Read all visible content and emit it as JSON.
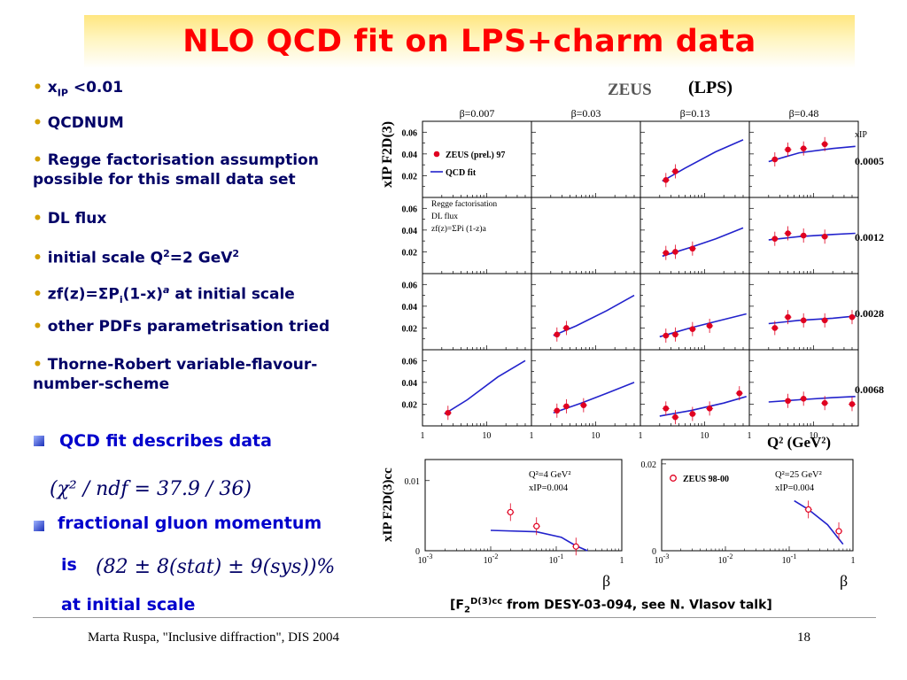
{
  "slide": {
    "title": "NLO QCD fit on LPS+charm data",
    "bullets": [
      {
        "text": "x",
        "sub": "IP",
        "tail": " <0.01"
      },
      {
        "text": "QCDNUM"
      },
      {
        "text": "Regge factorisation assumption",
        "line2": "possible for this small data set"
      },
      {
        "text": "DL flux"
      },
      {
        "text": "initial scale Q",
        "sup": "2",
        "tail": "=2 GeV",
        "sup2": "2"
      },
      {
        "text": "zf(z)=ΣP",
        "sub": "i",
        "tail": "(1-x)",
        "sup": "a",
        "tail2": " at initial scale"
      },
      {
        "text": "other PDFs parametrisation tried"
      },
      {
        "text": "Thorne-Robert variable-flavour-",
        "line2": "number-scheme"
      }
    ],
    "fit_describes": "QCD fit describes data",
    "chi2_formula": "(χ² / ndf = 37.9 / 36)",
    "gluon_label": "fractional gluon momentum",
    "is_label": "is",
    "gluon_formula": "(82 ± 8(stat) ± 9(sys))%",
    "at_initial": "at initial scale",
    "reference": "[F2D(3)cc from DESY-03-094, see N. Vlasov talk]",
    "ref_parts": {
      "pre": "[F",
      "sub": "2",
      "sup": "D(3)cc",
      "post": " from DESY-03-094, see N. Vlasov talk]"
    },
    "footer_left": "Marta Ruspa, \"Inclusive diffraction\", DIS 2004",
    "footer_right": "18"
  },
  "colors": {
    "title": "#ff0000",
    "bullet_text": "#000066",
    "blue_text": "#0000cc",
    "data_point": "#e00020",
    "fit_line": "#2222cc",
    "bullet_dot": "#d4a000"
  },
  "chart_data": [
    {
      "type": "scatter",
      "title": "ZEUS",
      "subtitle": "(LPS)",
      "ylabel": "xIP F2D(3)",
      "xlabel": "Q² (GeV²)",
      "x_scale": "log",
      "xlim": [
        1,
        50
      ],
      "ylim": [
        0,
        0.07
      ],
      "y_ticks": [
        "0.02",
        "0.04",
        "0.06"
      ],
      "x_ticks": [
        "1",
        "10"
      ],
      "columns": [
        "β=0.007",
        "β=0.03",
        "β=0.13",
        "β=0.48"
      ],
      "rows": [
        "0.0005",
        "0.0012",
        "0.0028",
        "0.0068"
      ],
      "row_axis_label": "xIP",
      "legend": [
        "ZEUS (prel.) 97",
        "QCD fit"
      ],
      "annotation": [
        "Regge factorisation",
        "DL flux",
        "zf(z)=ΣPi (1-z)a"
      ],
      "panels": [
        {
          "row": 0,
          "col": 0,
          "points": [],
          "fit": []
        },
        {
          "row": 0,
          "col": 1,
          "points": [],
          "fit": []
        },
        {
          "row": 0,
          "col": 2,
          "points": [
            [
              2.5,
              0.016
            ],
            [
              3.5,
              0.024
            ]
          ],
          "fit": [
            [
              2.2,
              0.015
            ],
            [
              5,
              0.027
            ],
            [
              15,
              0.042
            ],
            [
              40,
              0.053
            ]
          ]
        },
        {
          "row": 0,
          "col": 3,
          "points": [
            [
              2.5,
              0.035
            ],
            [
              4,
              0.044
            ],
            [
              7,
              0.045
            ],
            [
              15,
              0.049
            ]
          ],
          "fit": [
            [
              2,
              0.033
            ],
            [
              6,
              0.041
            ],
            [
              20,
              0.045
            ],
            [
              45,
              0.047
            ]
          ]
        },
        {
          "row": 1,
          "col": 0,
          "points": [],
          "fit": []
        },
        {
          "row": 1,
          "col": 1,
          "points": [],
          "fit": []
        },
        {
          "row": 1,
          "col": 2,
          "points": [
            [
              2.5,
              0.019
            ],
            [
              3.5,
              0.02
            ],
            [
              6.5,
              0.023
            ]
          ],
          "fit": [
            [
              2.2,
              0.016
            ],
            [
              6,
              0.024
            ],
            [
              15,
              0.032
            ],
            [
              40,
              0.042
            ]
          ]
        },
        {
          "row": 1,
          "col": 3,
          "points": [
            [
              2.5,
              0.032
            ],
            [
              4,
              0.037
            ],
            [
              7,
              0.035
            ],
            [
              15,
              0.034
            ]
          ],
          "fit": [
            [
              2,
              0.031
            ],
            [
              6,
              0.034
            ],
            [
              20,
              0.036
            ],
            [
              45,
              0.037
            ]
          ]
        },
        {
          "row": 2,
          "col": 0,
          "points": [],
          "fit": []
        },
        {
          "row": 2,
          "col": 1,
          "points": [
            [
              2.5,
              0.014
            ],
            [
              3.5,
              0.02
            ]
          ],
          "fit": [
            [
              2.2,
              0.013
            ],
            [
              5,
              0.022
            ],
            [
              15,
              0.036
            ],
            [
              40,
              0.05
            ]
          ]
        },
        {
          "row": 2,
          "col": 2,
          "points": [
            [
              2.5,
              0.013
            ],
            [
              3.5,
              0.014
            ],
            [
              6.5,
              0.019
            ],
            [
              12,
              0.022
            ]
          ],
          "fit": [
            [
              2,
              0.012
            ],
            [
              6,
              0.02
            ],
            [
              15,
              0.026
            ],
            [
              45,
              0.033
            ]
          ]
        },
        {
          "row": 2,
          "col": 3,
          "points": [
            [
              2.5,
              0.02
            ],
            [
              4,
              0.03
            ],
            [
              7,
              0.027
            ],
            [
              15,
              0.027
            ],
            [
              40,
              0.03
            ]
          ],
          "fit": [
            [
              2,
              0.024
            ],
            [
              6,
              0.027
            ],
            [
              20,
              0.029
            ],
            [
              45,
              0.031
            ]
          ]
        },
        {
          "row": 3,
          "col": 0,
          "points": [
            [
              2.5,
              0.012
            ]
          ],
          "fit": [
            [
              2.2,
              0.011
            ],
            [
              5,
              0.024
            ],
            [
              15,
              0.045
            ],
            [
              40,
              0.06
            ]
          ]
        },
        {
          "row": 3,
          "col": 1,
          "points": [
            [
              2.5,
              0.014
            ],
            [
              3.5,
              0.018
            ],
            [
              6.5,
              0.019
            ]
          ],
          "fit": [
            [
              2.2,
              0.012
            ],
            [
              6,
              0.021
            ],
            [
              15,
              0.03
            ],
            [
              40,
              0.04
            ]
          ]
        },
        {
          "row": 3,
          "col": 2,
          "points": [
            [
              2.5,
              0.016
            ],
            [
              3.5,
              0.008
            ],
            [
              6.5,
              0.011
            ],
            [
              12,
              0.016
            ],
            [
              35,
              0.03
            ]
          ],
          "fit": [
            [
              2,
              0.009
            ],
            [
              6,
              0.014
            ],
            [
              20,
              0.021
            ],
            [
              45,
              0.027
            ]
          ]
        },
        {
          "row": 3,
          "col": 3,
          "points": [
            [
              4,
              0.023
            ],
            [
              7,
              0.025
            ],
            [
              15,
              0.021
            ],
            [
              40,
              0.02
            ]
          ],
          "fit": [
            [
              2,
              0.022
            ],
            [
              6,
              0.024
            ],
            [
              20,
              0.026
            ],
            [
              45,
              0.027
            ]
          ]
        }
      ]
    },
    {
      "type": "scatter",
      "ylabel": "xIP F2D(3)cc",
      "xlabel": "β",
      "x_scale": "log",
      "xlim": [
        0.001,
        1
      ],
      "ylim": [
        0,
        0.013
      ],
      "y_ticks": [
        "0",
        "0.01"
      ],
      "x_ticks": [
        "10-3",
        "10-2",
        "10-1",
        "1"
      ],
      "annotation": [
        "Q²=4 GeV²",
        "xIP=0.004"
      ],
      "points": [
        [
          0.02,
          0.0055
        ],
        [
          0.05,
          0.0035
        ],
        [
          0.2,
          0.0006
        ]
      ],
      "fit": [
        [
          0.01,
          0.0029
        ],
        [
          0.05,
          0.0027
        ],
        [
          0.12,
          0.0019
        ],
        [
          0.2,
          0.0007
        ],
        [
          0.3,
          0.0
        ]
      ]
    },
    {
      "type": "scatter",
      "xlabel": "β",
      "x_scale": "log",
      "xlim": [
        0.001,
        1
      ],
      "ylim": [
        0,
        0.021
      ],
      "y_ticks": [
        "0",
        "0.02"
      ],
      "x_ticks": [
        "10-3",
        "10-2",
        "10-1",
        "1"
      ],
      "legend": [
        "ZEUS 98-00"
      ],
      "annotation": [
        "Q²=25 GeV²",
        "xIP=0.004"
      ],
      "points": [
        [
          0.2,
          0.0095
        ],
        [
          0.6,
          0.0045
        ]
      ],
      "fit": [
        [
          0.12,
          0.0115
        ],
        [
          0.2,
          0.0095
        ],
        [
          0.4,
          0.006
        ],
        [
          0.7,
          0.0015
        ]
      ]
    }
  ]
}
